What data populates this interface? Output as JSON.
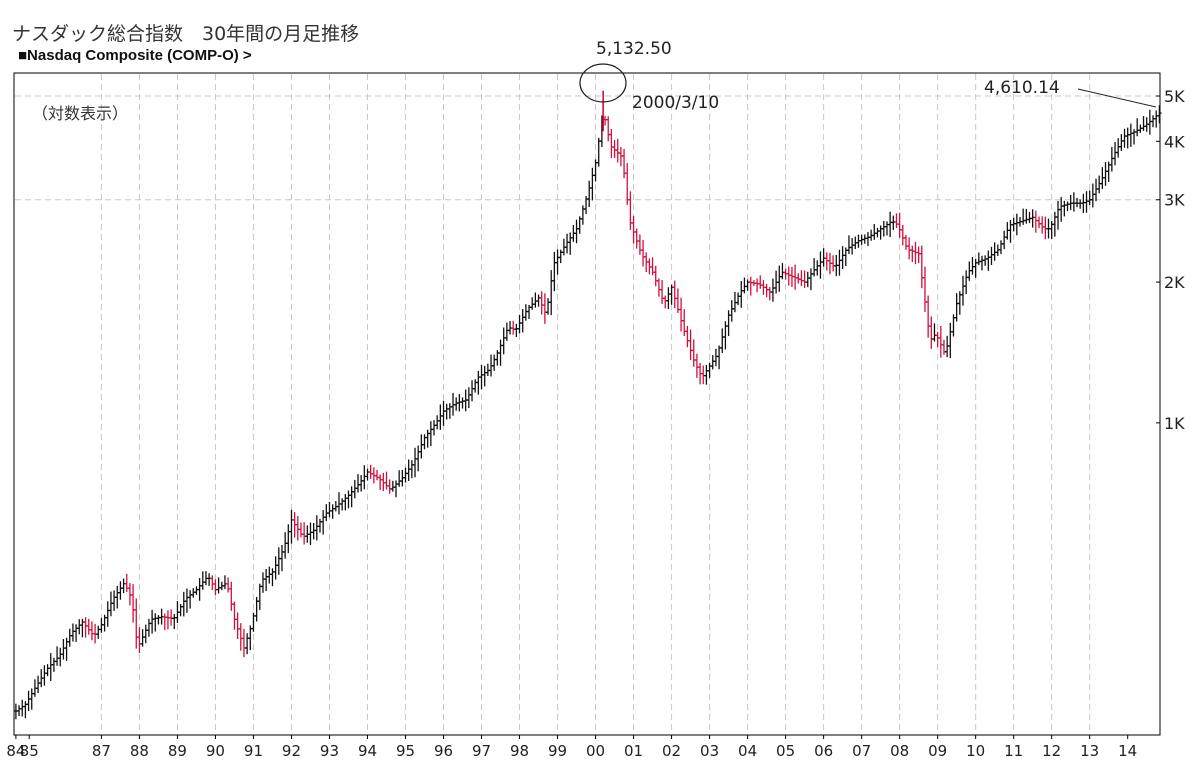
{
  "header": {
    "title": "ナスダック総合指数　30年間の月足推移",
    "subtitle": "■Nasdaq Composite (COMP-O)  >"
  },
  "chart_data": {
    "type": "candlestick",
    "title": "ナスダック総合指数　30年間の月足推移",
    "subtitle": "■Nasdaq Composite (COMP-O)  >",
    "scale_note": "（対数表示）",
    "y_scale": "log",
    "ylim": [
      215,
      5600
    ],
    "xlim": [
      1984.7,
      2014.85
    ],
    "y_ticks": [
      {
        "value": 1000,
        "label": "1K"
      },
      {
        "value": 2000,
        "label": "2K"
      },
      {
        "value": 3000,
        "label": "3K"
      },
      {
        "value": 4000,
        "label": "4K"
      },
      {
        "value": 5000,
        "label": "5K"
      }
    ],
    "x_ticks": [
      {
        "value": 1984.75,
        "label": "84"
      },
      {
        "value": 1985.1,
        "label": "85"
      },
      {
        "value": 1987.0,
        "label": "87"
      },
      {
        "value": 1988.0,
        "label": "88"
      },
      {
        "value": 1989.0,
        "label": "89"
      },
      {
        "value": 1990.0,
        "label": "90"
      },
      {
        "value": 1991.0,
        "label": "91"
      },
      {
        "value": 1992.0,
        "label": "92"
      },
      {
        "value": 1993.0,
        "label": "93"
      },
      {
        "value": 1994.0,
        "label": "94"
      },
      {
        "value": 1995.0,
        "label": "95"
      },
      {
        "value": 1996.0,
        "label": "96"
      },
      {
        "value": 1997.0,
        "label": "97"
      },
      {
        "value": 1998.0,
        "label": "98"
      },
      {
        "value": 1999.0,
        "label": "99"
      },
      {
        "value": 2000.0,
        "label": "00"
      },
      {
        "value": 2001.0,
        "label": "01"
      },
      {
        "value": 2002.0,
        "label": "02"
      },
      {
        "value": 2003.0,
        "label": "03"
      },
      {
        "value": 2004.0,
        "label": "04"
      },
      {
        "value": 2005.0,
        "label": "05"
      },
      {
        "value": 2006.0,
        "label": "06"
      },
      {
        "value": 2007.0,
        "label": "07"
      },
      {
        "value": 2008.0,
        "label": "08"
      },
      {
        "value": 2009.0,
        "label": "09"
      },
      {
        "value": 2010.0,
        "label": "10"
      },
      {
        "value": 2011.0,
        "label": "11"
      },
      {
        "value": 2012.0,
        "label": "12"
      },
      {
        "value": 2013.0,
        "label": "13"
      },
      {
        "value": 2014.0,
        "label": "14"
      }
    ],
    "vertical_gridlines": [
      1987,
      1988,
      1989,
      1990,
      1991,
      1992,
      1993,
      1994,
      1995,
      1996,
      1997,
      1998,
      1999,
      2000,
      2001,
      2002,
      2003,
      2004,
      2005,
      2006,
      2007,
      2008,
      2009,
      2010,
      2011,
      2012,
      2013
    ],
    "horizontal_gridlines": [
      3000,
      5000
    ],
    "series": [
      {
        "x": [
          1984.75,
          1985.0,
          1985.3,
          1985.6,
          1985.9,
          1986.2,
          1986.5,
          1986.8,
          1987.0,
          1987.3,
          1987.6,
          1987.8,
          1987.95,
          1988.3,
          1988.6,
          1988.9,
          1989.2,
          1989.5,
          1989.8,
          1990.0,
          1990.3,
          1990.5,
          1990.75,
          1990.95,
          1991.2,
          1991.5,
          1991.8,
          1992.0,
          1992.3,
          1992.6,
          1992.9,
          1993.2,
          1993.5,
          1993.8,
          1994.0,
          1994.3,
          1994.6,
          1994.9,
          1995.2,
          1995.5,
          1995.8,
          1996.0,
          1996.3,
          1996.6,
          1996.9,
          1997.2,
          1997.4,
          1997.7,
          1997.9,
          1998.2,
          1998.5,
          1998.7,
          1998.9,
          1999.2,
          1999.5,
          1999.8,
          2000.0,
          2000.2,
          2000.4,
          2000.7,
          2000.9,
          2001.2,
          2001.5,
          2001.8,
          2002.0,
          2002.3,
          2002.6,
          2002.8,
          2003.2,
          2003.5,
          2003.8,
          2004.0,
          2004.3,
          2004.6,
          2004.9,
          2005.2,
          2005.5,
          2005.8,
          2006.0,
          2006.3,
          2006.6,
          2006.9,
          2007.2,
          2007.5,
          2007.8,
          2007.95,
          2008.2,
          2008.5,
          2008.8,
          2008.95,
          2009.2,
          2009.5,
          2009.8,
          2010.0,
          2010.3,
          2010.6,
          2010.9,
          2011.2,
          2011.5,
          2011.8,
          2011.95,
          2012.2,
          2012.5,
          2012.8,
          2013.0,
          2013.3,
          2013.6,
          2013.9,
          2014.2,
          2014.5,
          2014.85
        ],
        "values": [
          242,
          250,
          275,
          300,
          318,
          355,
          375,
          350,
          370,
          420,
          455,
          420,
          330,
          380,
          385,
          381,
          420,
          440,
          470,
          440,
          455,
          380,
          330,
          370,
          460,
          480,
          540,
          620,
          570,
          590,
          640,
          665,
          700,
          745,
          785,
          760,
          720,
          760,
          820,
          930,
          1000,
          1060,
          1100,
          1120,
          1250,
          1300,
          1400,
          1600,
          1580,
          1750,
          1850,
          1700,
          2190,
          2400,
          2600,
          3100,
          3600,
          4650,
          3900,
          3700,
          2700,
          2300,
          2100,
          1800,
          1950,
          1600,
          1350,
          1250,
          1400,
          1700,
          1900,
          2000,
          1980,
          1900,
          2100,
          2050,
          2000,
          2150,
          2250,
          2150,
          2350,
          2450,
          2500,
          2600,
          2700,
          2650,
          2350,
          2300,
          1500,
          1550,
          1400,
          1800,
          2100,
          2200,
          2250,
          2350,
          2650,
          2700,
          2750,
          2600,
          2600,
          2900,
          2950,
          2950,
          3000,
          3300,
          3700,
          4100,
          4200,
          4350,
          4610.14
        ]
      }
    ],
    "annotations": [
      {
        "label": "5,132.50",
        "x": 2000.2,
        "y": 5132.5
      },
      {
        "label": "2000/3/10",
        "x": 2000.2,
        "y": 5132.5
      },
      {
        "label": "4,610.14",
        "x": 2014.85,
        "y": 4610.14
      }
    ],
    "colors": {
      "up": "#111111",
      "down": "#d0103a",
      "grid": "#c8c8c8"
    }
  }
}
